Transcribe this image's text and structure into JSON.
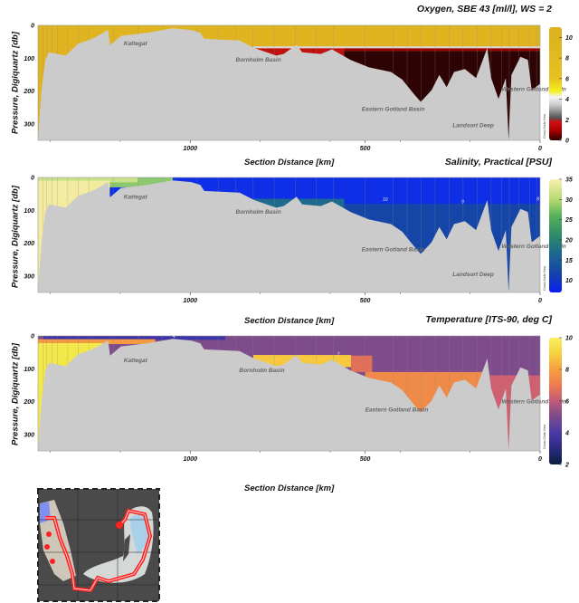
{
  "chart_data": [
    {
      "type": "heatmap",
      "title": "Oxygen, SBE 43 [ml/l], WS = 2",
      "xlabel": "Section Distance [km]",
      "ylabel": "Pressure, Digiquartz [db]",
      "xlim": [
        1435,
        0
      ],
      "ylim": [
        0,
        350
      ],
      "xticks": [
        1000,
        500,
        0
      ],
      "yticks": [
        0,
        100,
        200,
        300
      ],
      "colorbar": {
        "min": 0,
        "max": 11,
        "ticks": [
          0,
          2,
          4,
          6,
          8,
          10
        ],
        "stops": [
          [
            0,
            "#2a0000"
          ],
          [
            1,
            "#b00000"
          ],
          [
            1.8,
            "#d01010"
          ],
          [
            2.2,
            "#555555"
          ],
          [
            3.5,
            "#cfcfcf"
          ],
          [
            4.2,
            "#f3f3f3"
          ],
          [
            4.8,
            "#f5f020"
          ],
          [
            6,
            "#e8c020"
          ],
          [
            11,
            "#dcb020"
          ]
        ],
        "watermark": "Ocean Data View"
      },
      "field_background": "#e0b420",
      "field_regions": [
        {
          "from_km": 820,
          "to_km": 0,
          "top_db": 64,
          "bottom_db": 70,
          "color": "#d8d8d8"
        },
        {
          "from_km": 820,
          "to_km": 560,
          "top_db": 70,
          "bottom_db": 350,
          "color": "#c01010"
        },
        {
          "from_km": 560,
          "to_km": 0,
          "top_db": 70,
          "bottom_db": 78,
          "color": "#9a0000"
        },
        {
          "from_km": 560,
          "to_km": 0,
          "top_db": 78,
          "bottom_db": 350,
          "color": "#2e0303"
        }
      ],
      "annotations": [
        {
          "text": "Kattegat",
          "km": 1190,
          "db": 60
        },
        {
          "text": "Bornholm Basin",
          "km": 870,
          "db": 110
        },
        {
          "text": "Eastern Gotland Basin",
          "km": 510,
          "db": 260
        },
        {
          "text": "Western Gotland Basin",
          "km": 110,
          "db": 200
        },
        {
          "text": "Landsort Deep",
          "km": 250,
          "db": 310
        }
      ],
      "contours": []
    },
    {
      "type": "heatmap",
      "title": "Salinity, Practical [PSU]",
      "xlabel": "Section Distance [km]",
      "ylabel": "Pressure, Digiquartz [db]",
      "xlim": [
        1435,
        0
      ],
      "ylim": [
        0,
        350
      ],
      "xticks": [
        1000,
        500,
        0
      ],
      "yticks": [
        0,
        100,
        200,
        300
      ],
      "colorbar": {
        "min": 7,
        "max": 35,
        "ticks": [
          10,
          15,
          20,
          25,
          30,
          35
        ],
        "stops": [
          [
            7,
            "#0a1ef0"
          ],
          [
            12,
            "#1446a8"
          ],
          [
            17,
            "#1f6a8c"
          ],
          [
            21,
            "#2d8a6a"
          ],
          [
            26,
            "#55b35a"
          ],
          [
            30,
            "#b8d870"
          ],
          [
            35,
            "#f8f0b0"
          ]
        ],
        "watermark": "Ocean Data View"
      },
      "field_background": "#0f2fe6",
      "field_regions": [
        {
          "from_km": 1435,
          "to_km": 1050,
          "top_db": 0,
          "bottom_db": 30,
          "color": "#8cc870"
        },
        {
          "from_km": 1435,
          "to_km": 1150,
          "top_db": 0,
          "bottom_db": 15,
          "color": "#c9e28a"
        },
        {
          "from_km": 1435,
          "to_km": 1230,
          "top_db": 10,
          "bottom_db": 350,
          "color": "#f3eba0"
        },
        {
          "from_km": 820,
          "to_km": 560,
          "top_db": 65,
          "bottom_db": 350,
          "color": "#1e6a8e"
        },
        {
          "from_km": 560,
          "to_km": 0,
          "top_db": 80,
          "bottom_db": 350,
          "color": "#1645a8"
        }
      ],
      "annotations": [
        {
          "text": "Kattegat",
          "km": 1190,
          "db": 65
        },
        {
          "text": "Bornholm Basin",
          "km": 870,
          "db": 110
        },
        {
          "text": "Eastern Gotland Basin",
          "km": 510,
          "db": 225
        },
        {
          "text": "Western Gotland Basin",
          "km": 110,
          "db": 215
        },
        {
          "text": "Landsort Deep",
          "km": 250,
          "db": 300
        }
      ],
      "contours": [
        {
          "label": "10",
          "km": 450,
          "db": 72
        },
        {
          "label": "9",
          "km": 225,
          "db": 78
        },
        {
          "label": "8",
          "km": 10,
          "db": 70
        }
      ]
    },
    {
      "type": "heatmap",
      "title": "Temperature [ITS-90, deg C]",
      "xlabel": "Section Distance [km]",
      "ylabel": "Pressure, Digiquartz [db]",
      "xlim": [
        1435,
        0
      ],
      "ylim": [
        0,
        350
      ],
      "xticks": [
        1000,
        500,
        0
      ],
      "yticks": [
        0,
        100,
        200,
        300
      ],
      "colorbar": {
        "min": 2,
        "max": 10,
        "ticks": [
          2,
          4,
          6,
          8,
          10
        ],
        "stops": [
          [
            2,
            "#0a2040"
          ],
          [
            3,
            "#2a2a80"
          ],
          [
            4,
            "#4a3aa8"
          ],
          [
            5,
            "#7a4a8a"
          ],
          [
            6,
            "#c05a78"
          ],
          [
            7,
            "#f07a50"
          ],
          [
            8,
            "#f5a040"
          ],
          [
            9,
            "#f5d040"
          ],
          [
            10,
            "#f8f060"
          ]
        ],
        "watermark": "Ocean Data View"
      },
      "field_background": "#7e4c8a",
      "field_regions": [
        {
          "from_km": 1420,
          "to_km": 900,
          "top_db": 0,
          "bottom_db": 12,
          "color": "#3c34a8"
        },
        {
          "from_km": 1435,
          "to_km": 1100,
          "top_db": 10,
          "bottom_db": 25,
          "color": "#f59a40"
        },
        {
          "from_km": 1435,
          "to_km": 1250,
          "top_db": 22,
          "bottom_db": 350,
          "color": "#f2e84a"
        },
        {
          "from_km": 820,
          "to_km": 540,
          "top_db": 58,
          "bottom_db": 95,
          "color": "#f5c840"
        },
        {
          "from_km": 540,
          "to_km": 480,
          "top_db": 60,
          "bottom_db": 110,
          "color": "#e07058"
        },
        {
          "from_km": 500,
          "to_km": 150,
          "top_db": 110,
          "bottom_db": 350,
          "color": "#f08a48"
        },
        {
          "from_km": 150,
          "to_km": 0,
          "top_db": 120,
          "bottom_db": 350,
          "color": "#d06070"
        }
      ],
      "annotations": [
        {
          "text": "Kattegat",
          "km": 1190,
          "db": 80
        },
        {
          "text": "Bornholm Basin",
          "km": 860,
          "db": 110
        },
        {
          "text": "Eastern Gotland Basin",
          "km": 500,
          "db": 230
        },
        {
          "text": "Western Gotland Basin",
          "km": 110,
          "db": 205
        }
      ],
      "contours": [
        {
          "label": "4",
          "km": 1050,
          "db": 6
        },
        {
          "label": "7",
          "km": 580,
          "db": 60
        }
      ]
    }
  ],
  "bottom_profile": [
    [
      1435,
      350
    ],
    [
      1432,
      297
    ],
    [
      1425,
      197
    ],
    [
      1414,
      105
    ],
    [
      1404,
      82
    ],
    [
      1356,
      92
    ],
    [
      1319,
      55
    ],
    [
      1303,
      50
    ],
    [
      1272,
      37
    ],
    [
      1235,
      14
    ],
    [
      1229,
      60
    ],
    [
      1198,
      32
    ],
    [
      1124,
      23
    ],
    [
      1050,
      9
    ],
    [
      997,
      14
    ],
    [
      971,
      23
    ],
    [
      960,
      41
    ],
    [
      859,
      46
    ],
    [
      817,
      69
    ],
    [
      754,
      92
    ],
    [
      733,
      87
    ],
    [
      696,
      59
    ],
    [
      680,
      82
    ],
    [
      627,
      87
    ],
    [
      595,
      73
    ],
    [
      542,
      105
    ],
    [
      489,
      128
    ],
    [
      426,
      142
    ],
    [
      394,
      165
    ],
    [
      363,
      206
    ],
    [
      341,
      233
    ],
    [
      310,
      197
    ],
    [
      288,
      151
    ],
    [
      267,
      188
    ],
    [
      246,
      142
    ],
    [
      215,
      133
    ],
    [
      183,
      160
    ],
    [
      151,
      69
    ],
    [
      140,
      160
    ],
    [
      119,
      224
    ],
    [
      98,
      160
    ],
    [
      90,
      348
    ],
    [
      82,
      151
    ],
    [
      56,
      96
    ],
    [
      35,
      105
    ],
    [
      24,
      197
    ],
    [
      0,
      178
    ]
  ],
  "stations_km": [
    1420,
    1410,
    1395,
    1380,
    1350,
    1320,
    1290,
    1220,
    1150,
    1080,
    980,
    920,
    870,
    820,
    760,
    700,
    640,
    590,
    500,
    420,
    380,
    340,
    300,
    260,
    220,
    180,
    140,
    110,
    88,
    60,
    30,
    10
  ],
  "map": {
    "track_color": "#ff2020",
    "land_color": "#4a4a4a",
    "sea_color": "#d8cfc4"
  }
}
